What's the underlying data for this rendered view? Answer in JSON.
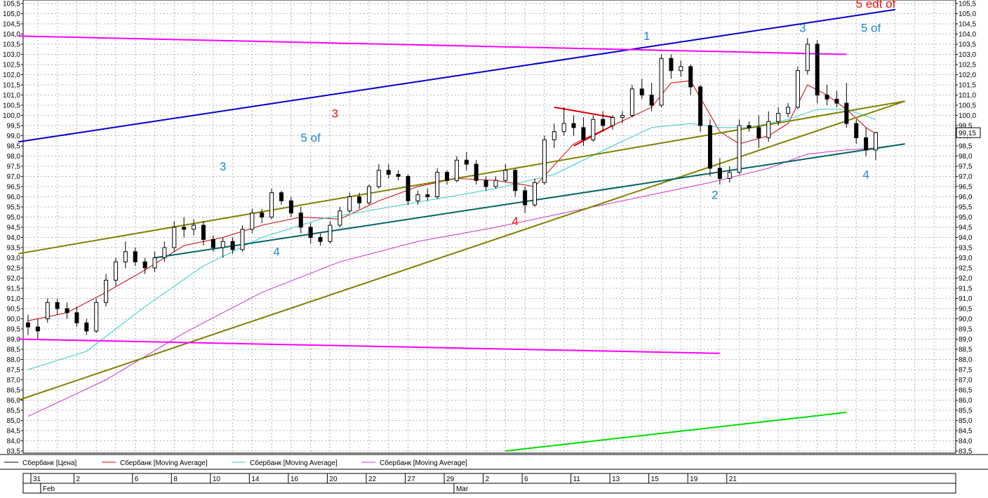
{
  "chart_data": {
    "type": "candlestick",
    "instrument": "Сбербанк",
    "y_axis": {
      "min": 83.5,
      "max": 105.5,
      "step": 0.5,
      "tick_labels": [
        "83,5",
        "84,0",
        "84,5",
        "85,0",
        "85,5",
        "86,0",
        "86,5",
        "87,0",
        "87,5",
        "88,0",
        "88,5",
        "89,0",
        "89,5",
        "90,0",
        "90,5",
        "91,0",
        "91,5",
        "92,0",
        "92,5",
        "93,0",
        "93,5",
        "94,0",
        "94,5",
        "95,0",
        "95,5",
        "96,0",
        "96,5",
        "97,0",
        "97,5",
        "98,0",
        "98,5",
        "99,0",
        "99,5",
        "100,0",
        "100,5",
        "101,0",
        "101,5",
        "102,0",
        "102,5",
        "103,0",
        "103,5",
        "104,0",
        "104,5",
        "105,0",
        "105,5"
      ],
      "last_price_label": "99,15",
      "last_price": 99.15
    },
    "x_axis": {
      "day_ticks": [
        "31",
        "2",
        "6",
        "8",
        "10",
        "14",
        "16",
        "20",
        "22",
        "27",
        "29",
        "2",
        "6",
        "11",
        "13",
        "15",
        "19",
        "21"
      ],
      "month_labels": [
        "Feb",
        "Mar"
      ],
      "session_range": [
        0,
        87
      ]
    },
    "grid": true,
    "legend_position": "bottom",
    "legend": [
      {
        "label": "Сбербанк [Цена]",
        "color": "#000000"
      },
      {
        "label": "Сбербанк [Moving Average]",
        "color": "#cc0000"
      },
      {
        "label": "Сбербанк [Moving Average]",
        "color": "#33cccc"
      },
      {
        "label": "Сбербанк [Moving Average]",
        "color": "#cc33cc"
      }
    ],
    "candles": [
      {
        "t": 0,
        "o": 89.8,
        "h": 90.2,
        "l": 89.2,
        "c": 89.6
      },
      {
        "t": 1,
        "o": 89.6,
        "h": 90.0,
        "l": 89.0,
        "c": 89.4
      },
      {
        "t": 2,
        "o": 90.0,
        "h": 91.0,
        "l": 89.8,
        "c": 90.8
      },
      {
        "t": 3,
        "o": 90.8,
        "h": 91.0,
        "l": 90.2,
        "c": 90.5
      },
      {
        "t": 4,
        "o": 90.5,
        "h": 90.8,
        "l": 90.0,
        "c": 90.3
      },
      {
        "t": 5,
        "o": 90.3,
        "h": 90.6,
        "l": 89.6,
        "c": 89.8
      },
      {
        "t": 6,
        "o": 89.8,
        "h": 90.0,
        "l": 89.2,
        "c": 89.4
      },
      {
        "t": 7,
        "o": 89.4,
        "h": 91.0,
        "l": 89.3,
        "c": 90.8
      },
      {
        "t": 8,
        "o": 90.8,
        "h": 92.2,
        "l": 90.6,
        "c": 91.9
      },
      {
        "t": 9,
        "o": 91.9,
        "h": 93.0,
        "l": 91.6,
        "c": 92.8
      },
      {
        "t": 10,
        "o": 92.8,
        "h": 93.8,
        "l": 92.5,
        "c": 93.3
      },
      {
        "t": 11,
        "o": 93.3,
        "h": 93.5,
        "l": 92.6,
        "c": 92.8
      },
      {
        "t": 12,
        "o": 92.8,
        "h": 93.0,
        "l": 92.2,
        "c": 92.5
      },
      {
        "t": 13,
        "o": 92.5,
        "h": 93.3,
        "l": 92.3,
        "c": 93.0
      },
      {
        "t": 14,
        "o": 93.0,
        "h": 93.8,
        "l": 92.8,
        "c": 93.5
      },
      {
        "t": 15,
        "o": 93.5,
        "h": 94.8,
        "l": 93.3,
        "c": 94.5
      },
      {
        "t": 16,
        "o": 94.5,
        "h": 95.0,
        "l": 94.0,
        "c": 94.4
      },
      {
        "t": 17,
        "o": 94.4,
        "h": 94.9,
        "l": 94.1,
        "c": 94.6
      },
      {
        "t": 18,
        "o": 94.6,
        "h": 94.8,
        "l": 93.6,
        "c": 93.9
      },
      {
        "t": 19,
        "o": 93.9,
        "h": 94.1,
        "l": 93.3,
        "c": 93.5
      },
      {
        "t": 20,
        "o": 93.5,
        "h": 94.0,
        "l": 93.0,
        "c": 93.8
      },
      {
        "t": 21,
        "o": 93.8,
        "h": 94.0,
        "l": 93.2,
        "c": 93.4
      },
      {
        "t": 22,
        "o": 93.4,
        "h": 94.6,
        "l": 93.3,
        "c": 94.4
      },
      {
        "t": 23,
        "o": 94.4,
        "h": 95.4,
        "l": 94.2,
        "c": 95.2
      },
      {
        "t": 24,
        "o": 95.2,
        "h": 95.4,
        "l": 94.7,
        "c": 95.0
      },
      {
        "t": 25,
        "o": 95.0,
        "h": 96.4,
        "l": 94.9,
        "c": 96.2
      },
      {
        "t": 26,
        "o": 96.2,
        "h": 96.3,
        "l": 95.6,
        "c": 95.8
      },
      {
        "t": 27,
        "o": 95.8,
        "h": 96.0,
        "l": 95.0,
        "c": 95.2
      },
      {
        "t": 28,
        "o": 95.2,
        "h": 95.5,
        "l": 94.2,
        "c": 94.5
      },
      {
        "t": 29,
        "o": 94.5,
        "h": 94.7,
        "l": 93.7,
        "c": 94.0
      },
      {
        "t": 30,
        "o": 94.0,
        "h": 94.2,
        "l": 93.6,
        "c": 93.8
      },
      {
        "t": 31,
        "o": 93.8,
        "h": 94.8,
        "l": 93.7,
        "c": 94.6
      },
      {
        "t": 32,
        "o": 94.6,
        "h": 95.5,
        "l": 94.5,
        "c": 95.3
      },
      {
        "t": 33,
        "o": 95.3,
        "h": 96.2,
        "l": 95.2,
        "c": 96.0
      },
      {
        "t": 34,
        "o": 96.0,
        "h": 96.2,
        "l": 95.4,
        "c": 95.7
      },
      {
        "t": 35,
        "o": 95.7,
        "h": 96.6,
        "l": 95.6,
        "c": 96.5
      },
      {
        "t": 36,
        "o": 96.5,
        "h": 97.6,
        "l": 96.4,
        "c": 97.3
      },
      {
        "t": 37,
        "o": 97.3,
        "h": 97.6,
        "l": 96.9,
        "c": 97.1
      },
      {
        "t": 38,
        "o": 97.1,
        "h": 97.3,
        "l": 96.8,
        "c": 97.0
      },
      {
        "t": 39,
        "o": 97.0,
        "h": 97.1,
        "l": 95.6,
        "c": 95.8
      },
      {
        "t": 40,
        "o": 95.8,
        "h": 96.3,
        "l": 95.6,
        "c": 96.1
      },
      {
        "t": 41,
        "o": 96.1,
        "h": 96.4,
        "l": 95.8,
        "c": 96.0
      },
      {
        "t": 42,
        "o": 96.0,
        "h": 97.4,
        "l": 95.9,
        "c": 97.2
      },
      {
        "t": 43,
        "o": 97.2,
        "h": 97.3,
        "l": 96.6,
        "c": 96.8
      },
      {
        "t": 44,
        "o": 96.8,
        "h": 98.0,
        "l": 96.7,
        "c": 97.8
      },
      {
        "t": 45,
        "o": 97.8,
        "h": 98.2,
        "l": 97.3,
        "c": 97.6
      },
      {
        "t": 46,
        "o": 97.6,
        "h": 97.8,
        "l": 96.6,
        "c": 96.8
      },
      {
        "t": 47,
        "o": 96.8,
        "h": 97.0,
        "l": 96.3,
        "c": 96.5
      },
      {
        "t": 48,
        "o": 96.5,
        "h": 97.0,
        "l": 96.4,
        "c": 96.8
      },
      {
        "t": 49,
        "o": 96.8,
        "h": 97.6,
        "l": 96.7,
        "c": 97.3
      },
      {
        "t": 50,
        "o": 97.3,
        "h": 97.4,
        "l": 96.0,
        "c": 96.3
      },
      {
        "t": 51,
        "o": 96.3,
        "h": 96.5,
        "l": 95.2,
        "c": 95.6
      },
      {
        "t": 52,
        "o": 95.6,
        "h": 96.9,
        "l": 95.5,
        "c": 96.7
      },
      {
        "t": 53,
        "o": 96.7,
        "h": 99.0,
        "l": 96.6,
        "c": 98.8
      },
      {
        "t": 54,
        "o": 98.8,
        "h": 99.6,
        "l": 98.4,
        "c": 99.2
      },
      {
        "t": 55,
        "o": 99.2,
        "h": 100.4,
        "l": 99.0,
        "c": 99.6
      },
      {
        "t": 56,
        "o": 99.6,
        "h": 100.0,
        "l": 99.0,
        "c": 99.4
      },
      {
        "t": 57,
        "o": 99.4,
        "h": 99.9,
        "l": 98.5,
        "c": 98.8
      },
      {
        "t": 58,
        "o": 98.8,
        "h": 100.0,
        "l": 98.7,
        "c": 99.8
      },
      {
        "t": 59,
        "o": 99.8,
        "h": 100.2,
        "l": 99.2,
        "c": 99.5
      },
      {
        "t": 60,
        "o": 99.5,
        "h": 100.0,
        "l": 99.3,
        "c": 99.9
      },
      {
        "t": 61,
        "o": 99.9,
        "h": 100.2,
        "l": 99.6,
        "c": 100.0
      },
      {
        "t": 62,
        "o": 100.0,
        "h": 101.5,
        "l": 99.9,
        "c": 101.3
      },
      {
        "t": 63,
        "o": 101.3,
        "h": 101.8,
        "l": 100.8,
        "c": 101.0
      },
      {
        "t": 64,
        "o": 101.0,
        "h": 101.6,
        "l": 100.2,
        "c": 100.5
      },
      {
        "t": 65,
        "o": 100.5,
        "h": 103.0,
        "l": 100.4,
        "c": 102.8
      },
      {
        "t": 66,
        "o": 102.8,
        "h": 103.0,
        "l": 101.8,
        "c": 102.2
      },
      {
        "t": 67,
        "o": 102.2,
        "h": 102.7,
        "l": 101.9,
        "c": 102.4
      },
      {
        "t": 68,
        "o": 102.4,
        "h": 102.5,
        "l": 101.0,
        "c": 101.4
      },
      {
        "t": 69,
        "o": 101.4,
        "h": 101.5,
        "l": 99.2,
        "c": 99.5
      },
      {
        "t": 70,
        "o": 99.5,
        "h": 99.8,
        "l": 97.0,
        "c": 97.4
      },
      {
        "t": 71,
        "o": 97.4,
        "h": 97.9,
        "l": 96.6,
        "c": 96.9
      },
      {
        "t": 72,
        "o": 96.9,
        "h": 97.5,
        "l": 96.7,
        "c": 97.2
      },
      {
        "t": 73,
        "o": 97.2,
        "h": 99.8,
        "l": 97.1,
        "c": 99.5
      },
      {
        "t": 74,
        "o": 99.5,
        "h": 99.7,
        "l": 99.2,
        "c": 99.4
      },
      {
        "t": 75,
        "o": 99.4,
        "h": 100.0,
        "l": 98.4,
        "c": 98.9
      },
      {
        "t": 76,
        "o": 98.9,
        "h": 100.2,
        "l": 98.7,
        "c": 99.7
      },
      {
        "t": 77,
        "o": 99.7,
        "h": 100.4,
        "l": 99.5,
        "c": 100.1
      },
      {
        "t": 78,
        "o": 100.1,
        "h": 100.6,
        "l": 99.9,
        "c": 100.4
      },
      {
        "t": 79,
        "o": 100.4,
        "h": 102.4,
        "l": 100.3,
        "c": 102.2
      },
      {
        "t": 80,
        "o": 102.2,
        "h": 103.8,
        "l": 102.0,
        "c": 103.5
      },
      {
        "t": 81,
        "o": 103.5,
        "h": 103.7,
        "l": 100.6,
        "c": 101.0
      },
      {
        "t": 82,
        "o": 101.0,
        "h": 101.5,
        "l": 100.5,
        "c": 100.8
      },
      {
        "t": 83,
        "o": 100.8,
        "h": 101.2,
        "l": 100.4,
        "c": 100.6
      },
      {
        "t": 84,
        "o": 100.6,
        "h": 101.6,
        "l": 99.4,
        "c": 99.6
      },
      {
        "t": 85,
        "o": 99.6,
        "h": 99.8,
        "l": 98.6,
        "c": 98.9
      },
      {
        "t": 86,
        "o": 98.9,
        "h": 99.4,
        "l": 98.0,
        "c": 98.3
      },
      {
        "t": 87,
        "o": 98.3,
        "h": 99.2,
        "l": 97.8,
        "c": 99.15
      }
    ],
    "moving_averages": [
      {
        "name": "Сбербанк [Moving Average]",
        "color": "#cc0000",
        "points": [
          [
            0,
            89.9
          ],
          [
            4,
            90.3
          ],
          [
            8,
            91.3
          ],
          [
            12,
            92.4
          ],
          [
            16,
            93.6
          ],
          [
            20,
            94.0
          ],
          [
            24,
            94.6
          ],
          [
            28,
            95.0
          ],
          [
            32,
            94.9
          ],
          [
            36,
            95.8
          ],
          [
            40,
            96.5
          ],
          [
            44,
            96.9
          ],
          [
            48,
            96.8
          ],
          [
            52,
            96.5
          ],
          [
            56,
            98.6
          ],
          [
            60,
            99.5
          ],
          [
            64,
            100.4
          ],
          [
            66,
            101.6
          ],
          [
            68,
            101.7
          ],
          [
            71,
            99.2
          ],
          [
            73,
            98.6
          ],
          [
            76,
            99.0
          ],
          [
            78,
            99.6
          ],
          [
            80,
            101.5
          ],
          [
            82,
            101.0
          ],
          [
            84,
            100.3
          ],
          [
            86,
            99.4
          ],
          [
            87,
            99.1
          ]
        ]
      },
      {
        "name": "Сбербанк [Moving Average]",
        "color": "#33cccc",
        "points": [
          [
            0,
            87.5
          ],
          [
            6,
            88.4
          ],
          [
            12,
            90.6
          ],
          [
            18,
            92.6
          ],
          [
            24,
            94.0
          ],
          [
            30,
            94.9
          ],
          [
            36,
            95.4
          ],
          [
            42,
            95.9
          ],
          [
            48,
            96.4
          ],
          [
            54,
            97.1
          ],
          [
            60,
            98.5
          ],
          [
            64,
            99.4
          ],
          [
            68,
            99.6
          ],
          [
            71,
            99.4
          ],
          [
            74,
            99.4
          ],
          [
            78,
            99.8
          ],
          [
            81,
            100.3
          ],
          [
            84,
            100.3
          ],
          [
            87,
            99.8
          ]
        ]
      },
      {
        "name": "Сбербанк [Moving Average]",
        "color": "#cc33cc",
        "points": [
          [
            0,
            85.2
          ],
          [
            8,
            87.0
          ],
          [
            16,
            89.3
          ],
          [
            24,
            91.3
          ],
          [
            32,
            92.8
          ],
          [
            40,
            93.8
          ],
          [
            48,
            94.5
          ],
          [
            56,
            95.3
          ],
          [
            64,
            96.1
          ],
          [
            70,
            96.7
          ],
          [
            76,
            97.4
          ],
          [
            80,
            98.1
          ],
          [
            84,
            98.3
          ],
          [
            87,
            98.4
          ]
        ]
      }
    ],
    "trendlines": [
      {
        "color": "#0000cc",
        "from": [
          -1,
          98.7
        ],
        "to": [
          89,
          105.2
        ]
      },
      {
        "color": "#808000",
        "from": [
          -1,
          93.2
        ],
        "to": [
          90,
          100.7
        ]
      },
      {
        "color": "#808000",
        "from": [
          -1,
          86.0
        ],
        "to": [
          90,
          100.7
        ]
      },
      {
        "color": "#006666",
        "from": [
          13,
          93.0
        ],
        "to": [
          90,
          98.6
        ]
      },
      {
        "color": "#ff00ff",
        "from": [
          -1,
          103.9
        ],
        "to": [
          84,
          103.0
        ]
      },
      {
        "color": "#ff00ff",
        "from": [
          -1,
          89.0
        ],
        "to": [
          71,
          88.3
        ]
      },
      {
        "color": "#00dd00",
        "from": [
          49,
          83.5
        ],
        "to": [
          84,
          85.4
        ]
      },
      {
        "color": "#dd0000",
        "from": [
          54,
          100.4
        ],
        "to": [
          60,
          99.9
        ]
      },
      {
        "color": "#dd0000",
        "from": [
          56,
          98.5
        ],
        "to": [
          60,
          99.5
        ]
      }
    ],
    "annotations": [
      {
        "text": "1",
        "color": "#1e87c8",
        "at": [
          63.5,
          103.7
        ]
      },
      {
        "text": "3",
        "color": "#1e87c8",
        "at": [
          79.5,
          104.1
        ]
      },
      {
        "text": "5 of",
        "color": "#1e87c8",
        "at": [
          86.5,
          104.1
        ]
      },
      {
        "text": "5  edt of",
        "color": "#ee1111",
        "at": [
          87.0,
          105.3
        ]
      },
      {
        "text": "3",
        "color": "#ee1111",
        "at": [
          31.5,
          99.9
        ]
      },
      {
        "text": "5 of",
        "color": "#1e87c8",
        "at": [
          29.0,
          98.7
        ]
      },
      {
        "text": "3",
        "color": "#1e87c8",
        "at": [
          20.0,
          97.3
        ]
      },
      {
        "text": "4",
        "color": "#1e87c8",
        "at": [
          25.5,
          93.1
        ]
      },
      {
        "text": "4",
        "color": "#ee1111",
        "at": [
          50.0,
          94.6
        ]
      },
      {
        "text": "2",
        "color": "#1e87c8",
        "at": [
          70.5,
          95.9
        ]
      },
      {
        "text": "4",
        "color": "#1e87c8",
        "at": [
          86.0,
          96.9
        ]
      }
    ]
  }
}
